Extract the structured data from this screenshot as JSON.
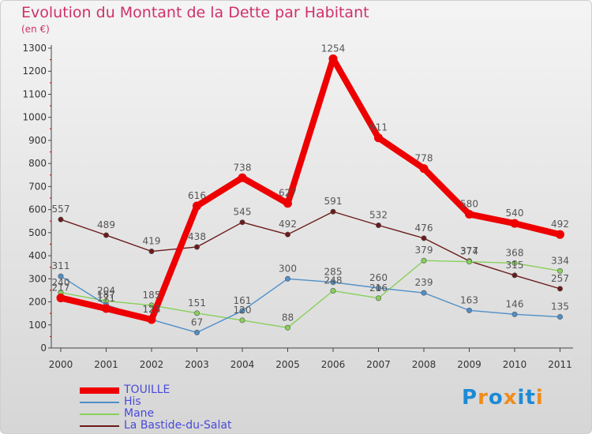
{
  "title": "Evolution du Montant de la Dette par Habitant",
  "unit": "(en €)",
  "colors": {
    "TOUILLE": "#ee0000",
    "His": "#4e8fc8",
    "Mane": "#88d05a",
    "La Bastide-du-Salat": "#6b1a1a",
    "title": "#d0306a"
  },
  "logo": {
    "letters": [
      "P",
      "r",
      "o",
      "x",
      "i",
      "t",
      "i"
    ],
    "colors": [
      "#1e8ad6",
      "#f08c1a",
      "#1e8ad6",
      "#f08c1a",
      "#1e8ad6",
      "#1e8ad6",
      "#f08c1a"
    ]
  },
  "chart_data": {
    "type": "line",
    "title": "Evolution du Montant de la Dette par Habitant",
    "ylabel": "(en €)",
    "x": [
      "2000",
      "2001",
      "2002",
      "2003",
      "2004",
      "2005",
      "2006",
      "2007",
      "2008",
      "2009",
      "2010",
      "2011"
    ],
    "ylim": [
      0,
      1300
    ],
    "yticks": [
      "0",
      "100",
      "200",
      "300",
      "400",
      "500",
      "600",
      "700",
      "800",
      "900",
      "1000",
      "1100",
      "1200",
      "1300"
    ],
    "grid": false,
    "legend": "bottom-left",
    "series": [
      {
        "name": "TOUILLE",
        "values": [
          217,
          171,
          123,
          616,
          738,
          627,
          1254,
          911,
          778,
          580,
          540,
          492
        ],
        "labels": [
          "217",
          "171",
          "123",
          "616",
          "738",
          "627",
          "1254",
          "911",
          "778",
          "580",
          "540",
          "492"
        ]
      },
      {
        "name": "His",
        "values": [
          311,
          187,
          123,
          67,
          161,
          300,
          285,
          260,
          239,
          163,
          146,
          135
        ],
        "labels": [
          "311",
          "187",
          "123",
          "67",
          "161",
          "300",
          "285",
          "260",
          "239",
          "163",
          "146",
          "135"
        ]
      },
      {
        "name": "Mane",
        "values": [
          240,
          204,
          185,
          151,
          120,
          88,
          248,
          216,
          379,
          374,
          368,
          334
        ],
        "labels": [
          "240",
          "204",
          "185",
          "151",
          "120",
          "88",
          "248",
          "216",
          "379",
          "374",
          "368",
          "334"
        ]
      },
      {
        "name": "La Bastide-du-Salat",
        "values": [
          557,
          489,
          419,
          438,
          545,
          492,
          591,
          532,
          476,
          377,
          315,
          257
        ],
        "labels": [
          "557",
          "489",
          "419",
          "438",
          "545",
          "492",
          "591",
          "532",
          "476",
          "377",
          "315",
          "257"
        ]
      }
    ]
  }
}
